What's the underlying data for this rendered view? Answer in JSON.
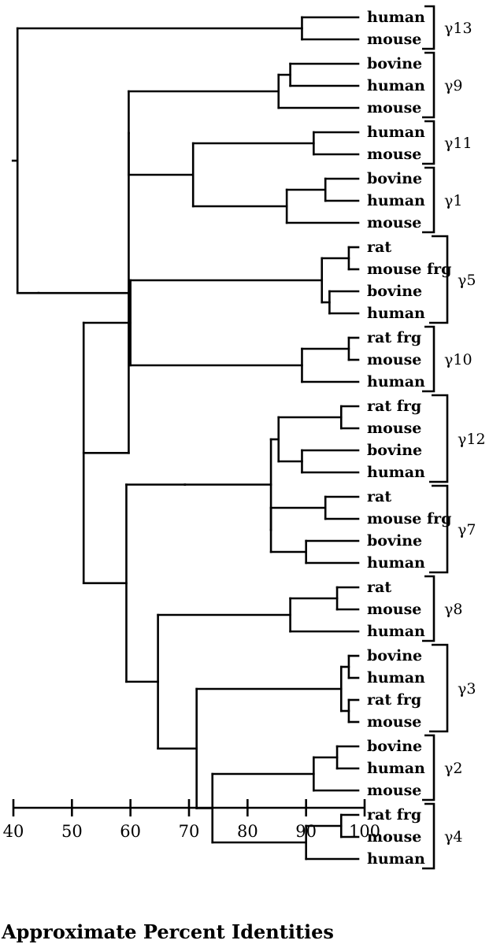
{
  "figure": {
    "axis_title": "Approximate Percent Identities",
    "axis_ticks": [
      "40",
      "50",
      "60",
      "70",
      "80",
      "90",
      "100"
    ],
    "axis_range": [
      40,
      100
    ]
  },
  "clades": [
    {
      "name": "γ13",
      "leaves": [
        "human",
        "mouse"
      ]
    },
    {
      "name": "γ9",
      "leaves": [
        "bovine",
        "human",
        "mouse"
      ]
    },
    {
      "name": "γ11",
      "leaves": [
        "human",
        "mouse"
      ]
    },
    {
      "name": "γ1",
      "leaves": [
        "bovine",
        "human",
        "mouse"
      ]
    },
    {
      "name": "γ5",
      "leaves": [
        "rat",
        "mouse frg",
        "bovine",
        "human"
      ]
    },
    {
      "name": "γ10",
      "leaves": [
        "rat frg",
        "mouse",
        "human"
      ]
    },
    {
      "name": "γ12",
      "leaves": [
        "rat frg",
        "mouse",
        "bovine",
        "human"
      ]
    },
    {
      "name": "γ7",
      "leaves": [
        "rat",
        "mouse frg",
        "bovine",
        "human"
      ]
    },
    {
      "name": "γ8",
      "leaves": [
        "rat",
        "mouse",
        "human"
      ]
    },
    {
      "name": "γ3",
      "leaves": [
        "bovine",
        "human",
        "rat frg",
        "mouse"
      ]
    },
    {
      "name": "γ2",
      "leaves": [
        "bovine",
        "human",
        "mouse"
      ]
    },
    {
      "name": "γ4",
      "leaves": [
        "rat frg",
        "mouse",
        "human"
      ]
    }
  ],
  "tree": {
    "id": 40.7,
    "children": [
      {
        "id": 89.3,
        "children": [
          {
            "leaf": "0.0"
          },
          {
            "leaf": "0.1"
          }
        ]
      },
      {
        "id": 44.3,
        "children": [
          {
            "id": 59.7,
            "children": [
              {
                "id": 59.7,
                "children": [
                  {
                    "id": 85.3,
                    "children": [
                      {
                        "id": 87.3,
                        "children": [
                          {
                            "leaf": "1.0"
                          },
                          {
                            "leaf": "1.1"
                          }
                        ]
                      },
                      {
                        "leaf": "1.2"
                      }
                    ]
                  },
                  {
                    "id": 70.7,
                    "children": [
                      {
                        "id": 91.3,
                        "children": [
                          {
                            "leaf": "2.0"
                          },
                          {
                            "leaf": "2.1"
                          }
                        ]
                      },
                      {
                        "id": 86.7,
                        "children": [
                          {
                            "id": 93.3,
                            "children": [
                              {
                                "leaf": "3.0"
                              },
                              {
                                "leaf": "3.1"
                              }
                            ]
                          },
                          {
                            "leaf": "3.2"
                          }
                        ]
                      }
                    ]
                  }
                ]
              },
              {
                "id": 52.0,
                "children": [
                  {
                    "id": 60.0,
                    "children": [
                      {
                        "id": 92.7,
                        "children": [
                          {
                            "id": 97.3,
                            "children": [
                              {
                                "leaf": "4.0"
                              },
                              {
                                "leaf": "4.1"
                              }
                            ]
                          },
                          {
                            "id": 94.0,
                            "children": [
                              {
                                "leaf": "4.2"
                              },
                              {
                                "leaf": "4.3"
                              }
                            ]
                          }
                        ]
                      },
                      {
                        "id": 89.3,
                        "children": [
                          {
                            "id": 97.3,
                            "children": [
                              {
                                "leaf": "5.0"
                              },
                              {
                                "leaf": "5.1"
                              }
                            ]
                          },
                          {
                            "leaf": "5.2"
                          }
                        ]
                      }
                    ]
                  },
                  {
                    "id": 59.3,
                    "children": [
                      {
                        "id": 69.3,
                        "children": [
                          {
                            "id": 84.0,
                            "children": [
                              {
                                "id": 85.3,
                                "children": [
                                  {
                                    "id": 96.0,
                                    "children": [
                                      {
                                        "leaf": "6.0"
                                      },
                                      {
                                        "leaf": "6.1"
                                      }
                                    ]
                                  },
                                  {
                                    "id": 89.3,
                                    "children": [
                                      {
                                        "leaf": "6.2"
                                      },
                                      {
                                        "leaf": "6.3"
                                      }
                                    ]
                                  }
                                ]
                              },
                              {
                                "id": 84.0,
                                "children": [
                                  {
                                    "id": 93.3,
                                    "children": [
                                      {
                                        "leaf": "7.0"
                                      },
                                      {
                                        "leaf": "7.1"
                                      }
                                    ]
                                  },
                                  {
                                    "id": 90.0,
                                    "children": [
                                      {
                                        "leaf": "7.2"
                                      },
                                      {
                                        "leaf": "7.3"
                                      }
                                    ]
                                  }
                                ]
                              }
                            ]
                          }
                        ]
                      },
                      {
                        "id": 64.7,
                        "children": [
                          {
                            "id": 87.3,
                            "children": [
                              {
                                "id": 95.3,
                                "children": [
                                  {
                                    "leaf": "8.0"
                                  },
                                  {
                                    "leaf": "8.1"
                                  }
                                ]
                              },
                              {
                                "leaf": "8.2"
                              }
                            ]
                          },
                          {
                            "id": 71.3,
                            "children": [
                              {
                                "id": 96.0,
                                "children": [
                                  {
                                    "id": 97.3,
                                    "children": [
                                      {
                                        "leaf": "9.0"
                                      },
                                      {
                                        "leaf": "9.1"
                                      }
                                    ]
                                  },
                                  {
                                    "id": 97.3,
                                    "children": [
                                      {
                                        "leaf": "9.2"
                                      },
                                      {
                                        "leaf": "9.3"
                                      }
                                    ]
                                  }
                                ]
                              },
                              {
                                "id": 74.0,
                                "children": [
                                  {
                                    "id": 91.3,
                                    "children": [
                                      {
                                        "id": 95.3,
                                        "children": [
                                          {
                                            "leaf": "10.0"
                                          },
                                          {
                                            "leaf": "10.1"
                                          }
                                        ]
                                      },
                                      {
                                        "leaf": "10.2"
                                      }
                                    ]
                                  },
                                  {
                                    "id": 90.0,
                                    "children": [
                                      {
                                        "id": 96.0,
                                        "children": [
                                          {
                                            "leaf": "11.0"
                                          },
                                          {
                                            "leaf": "11.1"
                                          }
                                        ]
                                      },
                                      {
                                        "leaf": "11.2"
                                      }
                                    ]
                                  }
                                ]
                              }
                            ]
                          }
                        ]
                      }
                    ]
                  }
                ]
              }
            ]
          }
        ]
      }
    ]
  }
}
